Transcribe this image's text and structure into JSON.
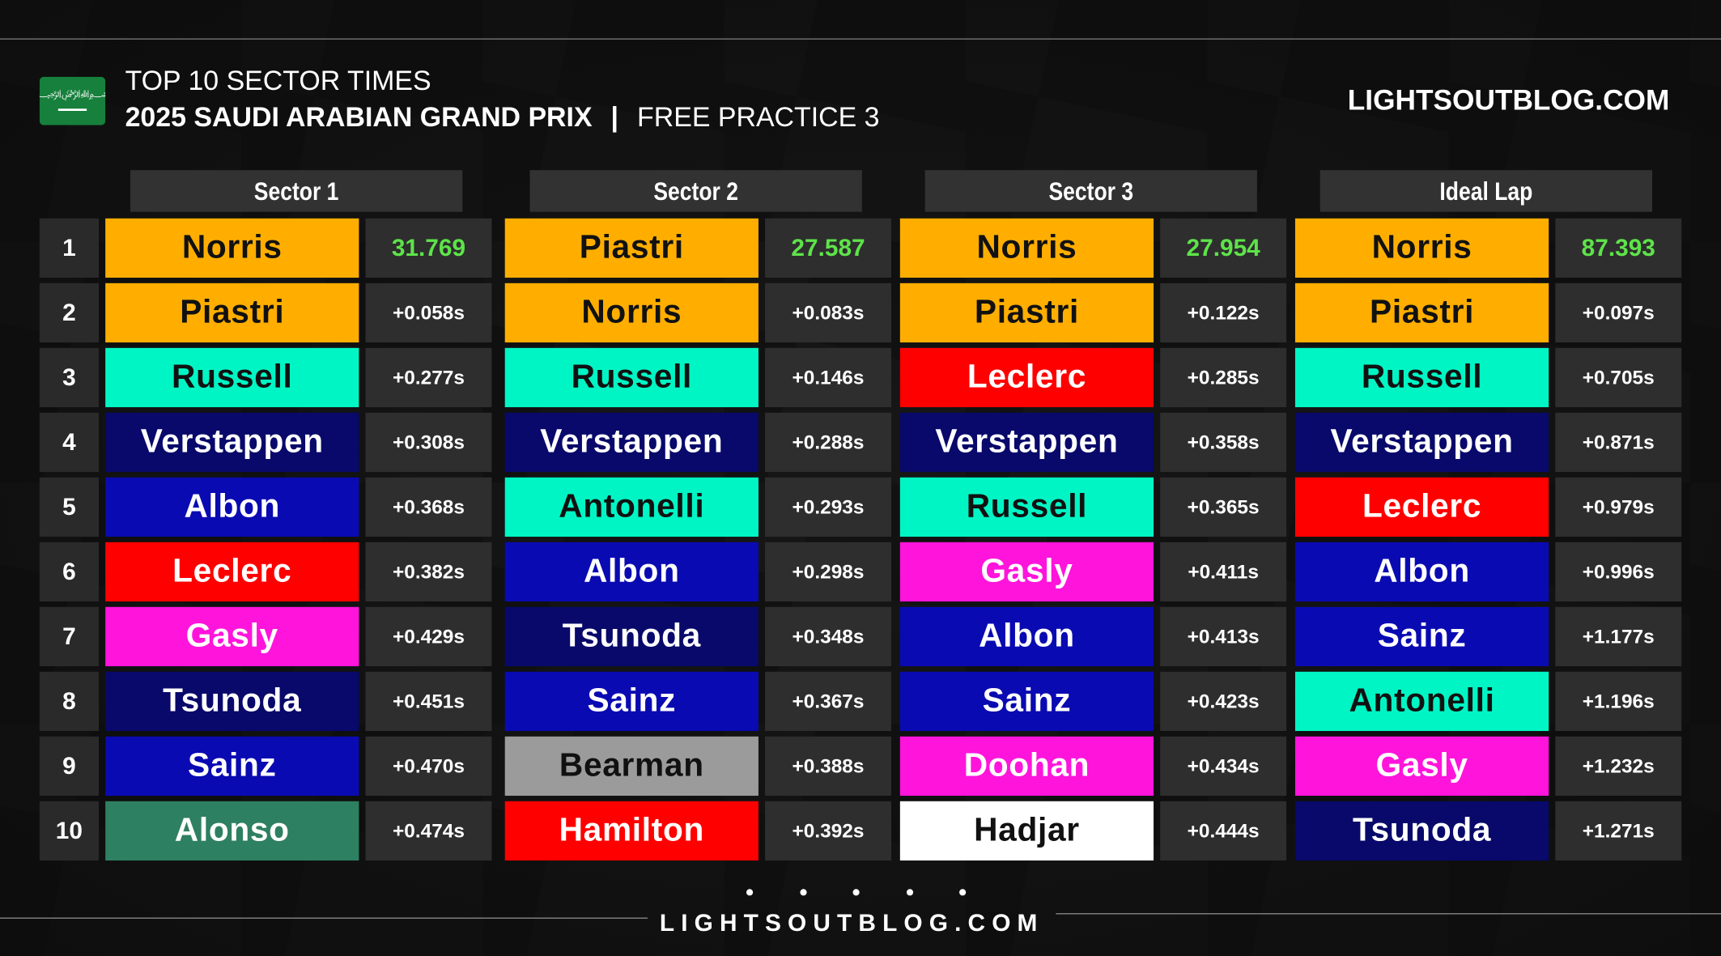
{
  "header": {
    "title": "TOP 10 SECTOR TIMES",
    "event": "2025 SAUDI ARABIAN GRAND PRIX",
    "separator": "|",
    "session": "FREE PRACTICE 3",
    "site": "LIGHTSOUTBLOG.COM"
  },
  "table": {
    "positions": [
      "1",
      "2",
      "3",
      "4",
      "5",
      "6",
      "7",
      "8",
      "9",
      "10"
    ],
    "columns": [
      {
        "heading": "Sector 1",
        "rows": [
          {
            "driver": "Norris",
            "time": "31.769",
            "color": "#ffae00"
          },
          {
            "driver": "Piastri",
            "time": "+0.058s",
            "color": "#ffae00"
          },
          {
            "driver": "Russell",
            "time": "+0.277s",
            "color": "#00f5c4"
          },
          {
            "driver": "Verstappen",
            "time": "+0.308s",
            "color": "#08096a"
          },
          {
            "driver": "Albon",
            "time": "+0.368s",
            "color": "#0a0ab2"
          },
          {
            "driver": "Leclerc",
            "time": "+0.382s",
            "color": "#ff0000"
          },
          {
            "driver": "Gasly",
            "time": "+0.429s",
            "color": "#ff14dc"
          },
          {
            "driver": "Tsunoda",
            "time": "+0.451s",
            "color": "#08096a"
          },
          {
            "driver": "Sainz",
            "time": "+0.470s",
            "color": "#0a0ab2"
          },
          {
            "driver": "Alonso",
            "time": "+0.474s",
            "color": "#2e8062"
          }
        ]
      },
      {
        "heading": "Sector 2",
        "rows": [
          {
            "driver": "Piastri",
            "time": "27.587",
            "color": "#ffae00"
          },
          {
            "driver": "Norris",
            "time": "+0.083s",
            "color": "#ffae00"
          },
          {
            "driver": "Russell",
            "time": "+0.146s",
            "color": "#00f5c4"
          },
          {
            "driver": "Verstappen",
            "time": "+0.288s",
            "color": "#08096a"
          },
          {
            "driver": "Antonelli",
            "time": "+0.293s",
            "color": "#00f5c4"
          },
          {
            "driver": "Albon",
            "time": "+0.298s",
            "color": "#0a0ab2"
          },
          {
            "driver": "Tsunoda",
            "time": "+0.348s",
            "color": "#08096a"
          },
          {
            "driver": "Sainz",
            "time": "+0.367s",
            "color": "#0a0ab2"
          },
          {
            "driver": "Bearman",
            "time": "+0.388s",
            "color": "#9b9b9b"
          },
          {
            "driver": "Hamilton",
            "time": "+0.392s",
            "color": "#ff0000"
          }
        ]
      },
      {
        "heading": "Sector 3",
        "rows": [
          {
            "driver": "Norris",
            "time": "27.954",
            "color": "#ffae00"
          },
          {
            "driver": "Piastri",
            "time": "+0.122s",
            "color": "#ffae00"
          },
          {
            "driver": "Leclerc",
            "time": "+0.285s",
            "color": "#ff0000"
          },
          {
            "driver": "Verstappen",
            "time": "+0.358s",
            "color": "#08096a"
          },
          {
            "driver": "Russell",
            "time": "+0.365s",
            "color": "#00f5c4"
          },
          {
            "driver": "Gasly",
            "time": "+0.411s",
            "color": "#ff14dc"
          },
          {
            "driver": "Albon",
            "time": "+0.413s",
            "color": "#0a0ab2"
          },
          {
            "driver": "Sainz",
            "time": "+0.423s",
            "color": "#0a0ab2"
          },
          {
            "driver": "Doohan",
            "time": "+0.434s",
            "color": "#ff14dc"
          },
          {
            "driver": "Hadjar",
            "time": "+0.444s",
            "color": "#ffffff"
          }
        ]
      },
      {
        "heading": "Ideal Lap",
        "rows": [
          {
            "driver": "Norris",
            "time": "87.393",
            "color": "#ffae00"
          },
          {
            "driver": "Piastri",
            "time": "+0.097s",
            "color": "#ffae00"
          },
          {
            "driver": "Russell",
            "time": "+0.705s",
            "color": "#00f5c4"
          },
          {
            "driver": "Verstappen",
            "time": "+0.871s",
            "color": "#08096a"
          },
          {
            "driver": "Leclerc",
            "time": "+0.979s",
            "color": "#ff0000"
          },
          {
            "driver": "Albon",
            "time": "+0.996s",
            "color": "#0a0ab2"
          },
          {
            "driver": "Sainz",
            "time": "+1.177s",
            "color": "#0a0ab2"
          },
          {
            "driver": "Antonelli",
            "time": "+1.196s",
            "color": "#00f5c4"
          },
          {
            "driver": "Gasly",
            "time": "+1.232s",
            "color": "#ff14dc"
          },
          {
            "driver": "Tsunoda",
            "time": "+1.271s",
            "color": "#08096a"
          }
        ]
      }
    ]
  },
  "footer": {
    "site": "LIGHTSOUTBLOG.COM"
  }
}
